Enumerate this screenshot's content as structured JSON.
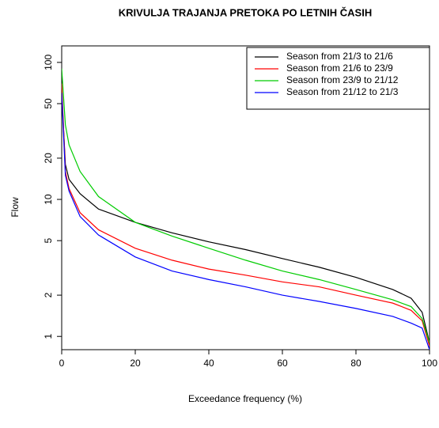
{
  "chart_data": {
    "type": "line",
    "title": "KRIVULJA TRAJANJA PRETOKA PO LETNIH ČASIH",
    "xlabel": "Exceedance frequency (%)",
    "ylabel": "Flow",
    "x": [
      0,
      1,
      2,
      5,
      10,
      20,
      30,
      40,
      50,
      60,
      70,
      80,
      90,
      95,
      98,
      100
    ],
    "series": [
      {
        "name": "Season from 21/3 to 21/6",
        "color": "#000000",
        "values": [
          60,
          18,
          14,
          11,
          8.5,
          6.8,
          5.7,
          4.9,
          4.3,
          3.7,
          3.2,
          2.7,
          2.2,
          1.9,
          1.5,
          0.9
        ]
      },
      {
        "name": "Season from 21/6 to 23/9",
        "color": "#ff0000",
        "values": [
          70,
          16,
          12,
          8,
          6,
          4.4,
          3.6,
          3.1,
          2.8,
          2.5,
          2.3,
          2.0,
          1.75,
          1.55,
          1.3,
          0.85
        ]
      },
      {
        "name": "Season from 23/9 to 21/12",
        "color": "#00cc00",
        "values": [
          90,
          35,
          25,
          16,
          10.5,
          6.8,
          5.4,
          4.4,
          3.6,
          3.0,
          2.6,
          2.2,
          1.85,
          1.65,
          1.35,
          0.9
        ]
      },
      {
        "name": "Season from 21/12 to 21/3",
        "color": "#0000ff",
        "values": [
          60,
          15,
          11.5,
          7.5,
          5.5,
          3.8,
          3.0,
          2.6,
          2.3,
          2.0,
          1.8,
          1.6,
          1.4,
          1.25,
          1.15,
          0.8
        ]
      }
    ],
    "xlim": [
      0,
      100
    ],
    "xticks": [
      0,
      20,
      40,
      60,
      80,
      100
    ],
    "ylim": [
      0.8,
      132
    ],
    "yticks": [
      1,
      2,
      5,
      10,
      20,
      50,
      100
    ],
    "log_y": true,
    "legend": "top-right"
  }
}
